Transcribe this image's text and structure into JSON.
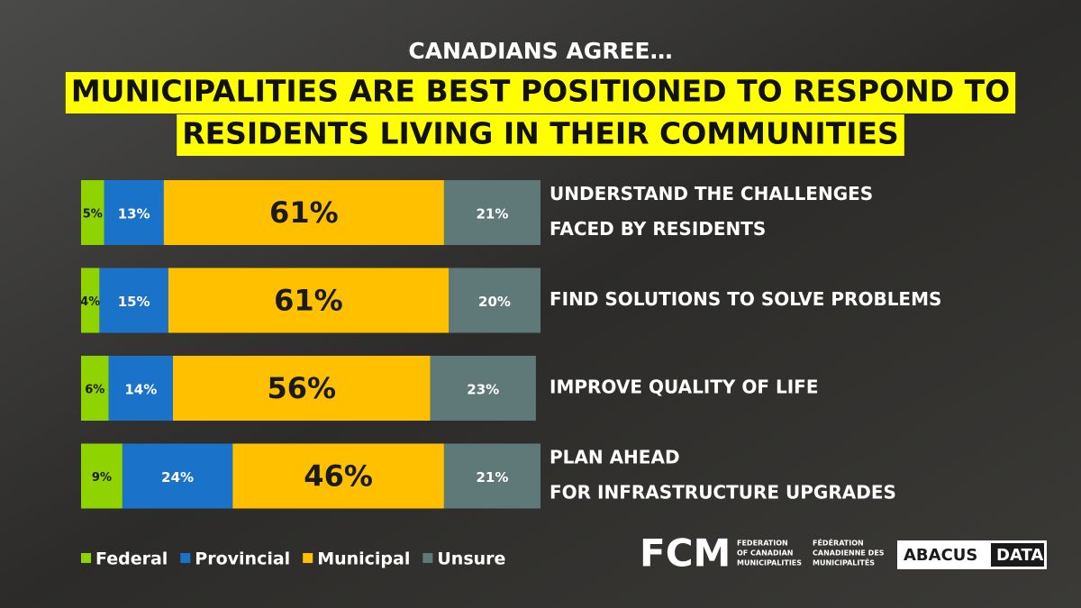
{
  "chart_data": {
    "type": "stacked-bar-horizontal",
    "subtitle": "CANADIANS AGREE…",
    "title": [
      "MUNICIPALITIES ARE BEST POSITIONED TO RESPOND TO",
      "RESIDENTS LIVING IN THEIR COMMUNITIES"
    ],
    "categories": [
      [
        "UNDERSTAND THE CHALLENGES",
        "FACED BY RESIDENTS"
      ],
      [
        "FIND SOLUTIONS TO SOLVE PROBLEMS"
      ],
      [
        "IMPROVE QUALITY OF LIFE"
      ],
      [
        "PLAN AHEAD",
        "FOR INFRASTRUCTURE UPGRADES"
      ]
    ],
    "series": [
      {
        "name": "Federal",
        "color": "#8fd400",
        "values": [
          5,
          4,
          6,
          9
        ],
        "value_labels": [
          "5%",
          "4%",
          "6%",
          "9%"
        ]
      },
      {
        "name": "Provincial",
        "color": "#1a73c8",
        "values": [
          13,
          15,
          14,
          24
        ],
        "value_labels": [
          "13%",
          "15%",
          "14%",
          "24%"
        ]
      },
      {
        "name": "Municipal",
        "color": "#ffc000",
        "values": [
          61,
          61,
          56,
          46
        ],
        "value_labels": [
          "61%",
          "61%",
          "56%",
          "46%"
        ]
      },
      {
        "name": "Unsure",
        "color": "#5f7878",
        "values": [
          21,
          20,
          23,
          21
        ],
        "value_labels": [
          "21%",
          "20%",
          "23%",
          "21%"
        ]
      }
    ],
    "legend": "bottom-left"
  },
  "logos": {
    "fcm": "FCM",
    "fcm_en": [
      "FEDERATION",
      "OF CANADIAN",
      "MUNICIPALITIES"
    ],
    "fcm_fr": [
      "FÉDÉRATION",
      "CANADIENNE DES",
      "MUNICIPALITÉS"
    ],
    "abacus": "ABACUS",
    "data": "DATA"
  }
}
